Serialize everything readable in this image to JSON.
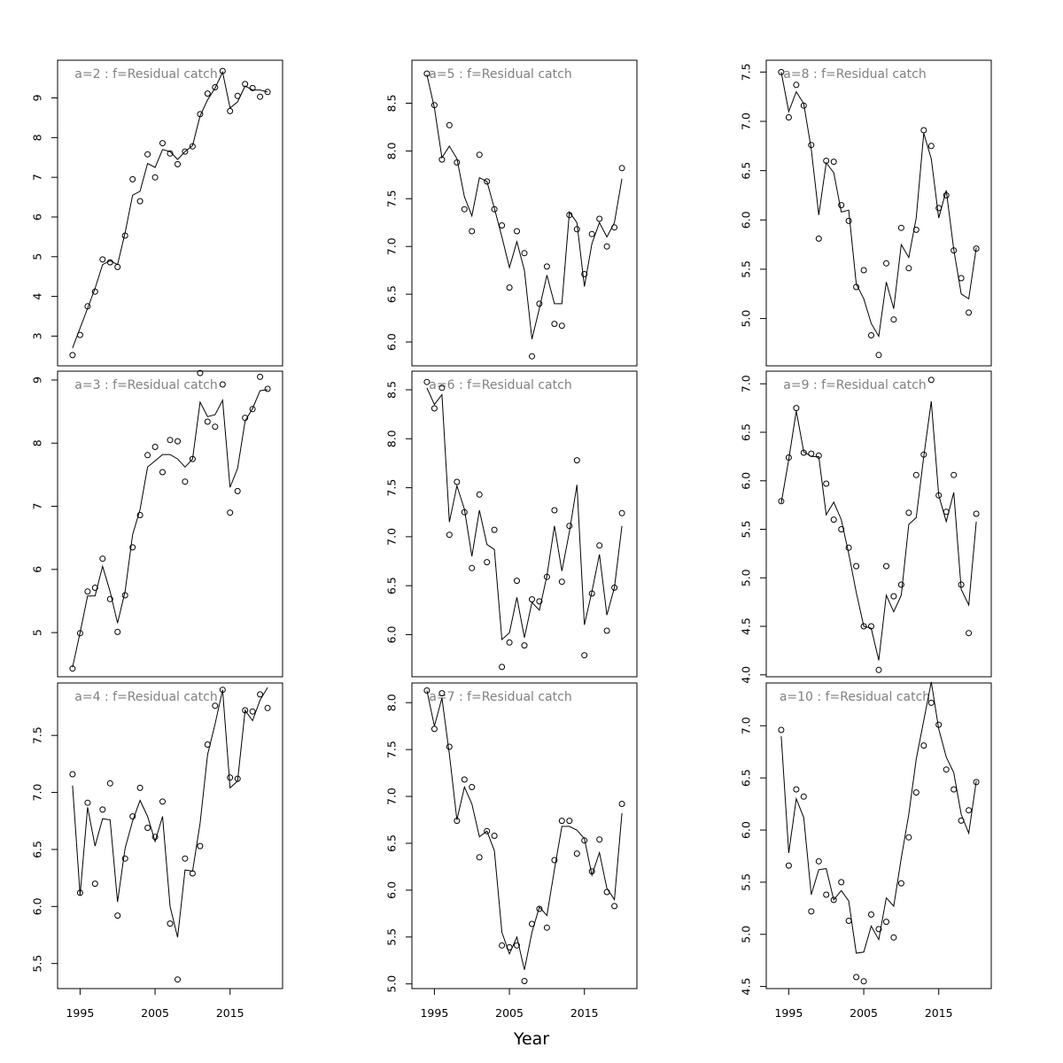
{
  "xlabel": "Year",
  "chart_data": [
    {
      "type": "line",
      "title": "a=2  :  f=Residual catch",
      "xlim": [
        1992,
        2022
      ],
      "ylim": [
        2.25,
        9.95
      ],
      "yticks": [
        3,
        4,
        5,
        6,
        7,
        8,
        9
      ],
      "xticks": [],
      "x": [
        1994,
        1995,
        1996,
        1997,
        1998,
        1999,
        2000,
        2001,
        2002,
        2003,
        2004,
        2005,
        2006,
        2007,
        2008,
        2009,
        2010,
        2011,
        2012,
        2013,
        2014,
        2015,
        2016,
        2017,
        2018,
        2019,
        2020
      ],
      "series": [
        {
          "values": [
            2.52,
            3.03,
            3.75,
            4.12,
            4.93,
            4.86,
            4.74,
            5.53,
            6.95,
            6.4,
            7.58,
            7.0,
            7.86,
            7.6,
            7.33,
            7.65,
            7.78,
            8.59,
            9.11,
            9.27,
            9.68,
            8.67,
            9.05,
            9.35,
            9.25,
            9.03,
            9.15
          ]
        },
        {
          "values": [
            2.7,
            3.2,
            3.7,
            4.2,
            4.8,
            4.9,
            4.8,
            5.6,
            6.55,
            6.65,
            7.35,
            7.25,
            7.7,
            7.65,
            7.45,
            7.65,
            7.8,
            8.55,
            8.95,
            9.25,
            9.65,
            8.75,
            8.9,
            9.3,
            9.2,
            9.2,
            9.15
          ]
        }
      ]
    },
    {
      "type": "line",
      "title": "a=5  :  f=Residual catch",
      "xlim": [
        1992,
        2022
      ],
      "ylim": [
        5.75,
        8.95
      ],
      "yticks": [
        6.0,
        6.5,
        7.0,
        7.5,
        8.0,
        8.5
      ],
      "xticks": [],
      "x": [
        1994,
        1995,
        1996,
        1997,
        1998,
        1999,
        2000,
        2001,
        2002,
        2003,
        2004,
        2005,
        2006,
        2007,
        2008,
        2009,
        2010,
        2011,
        2012,
        2013,
        2014,
        2015,
        2016,
        2017,
        2018,
        2019,
        2020
      ],
      "series": [
        {
          "values": [
            8.81,
            8.48,
            7.91,
            8.27,
            7.88,
            7.39,
            7.16,
            7.96,
            7.68,
            7.39,
            7.22,
            6.57,
            7.16,
            6.93,
            5.85,
            6.4,
            6.79,
            6.19,
            6.17,
            7.33,
            7.18,
            6.71,
            7.13,
            7.29,
            7.0,
            7.2,
            7.82
          ]
        },
        {
          "values": [
            8.8,
            8.45,
            7.93,
            8.05,
            7.92,
            7.52,
            7.32,
            7.72,
            7.68,
            7.4,
            7.1,
            6.78,
            7.05,
            6.75,
            6.03,
            6.35,
            6.7,
            6.4,
            6.4,
            7.36,
            7.25,
            6.58,
            7.03,
            7.25,
            7.1,
            7.25,
            7.71
          ]
        }
      ]
    },
    {
      "type": "line",
      "title": "a=8  :  f=Residual catch",
      "xlim": [
        1992,
        2022
      ],
      "ylim": [
        4.52,
        7.62
      ],
      "yticks": [
        5.0,
        5.5,
        6.0,
        6.5,
        7.0,
        7.5
      ],
      "xticks": [],
      "x": [
        1994,
        1995,
        1996,
        1997,
        1998,
        1999,
        2000,
        2001,
        2002,
        2003,
        2004,
        2005,
        2006,
        2007,
        2008,
        2009,
        2010,
        2011,
        2012,
        2013,
        2014,
        2015,
        2016,
        2017,
        2018,
        2019,
        2020
      ],
      "series": [
        {
          "values": [
            7.5,
            7.04,
            7.37,
            7.16,
            6.76,
            5.81,
            6.6,
            6.59,
            6.15,
            5.99,
            5.32,
            5.49,
            4.83,
            4.63,
            5.56,
            4.99,
            5.92,
            5.51,
            5.9,
            6.91,
            6.75,
            6.12,
            6.25,
            5.69,
            5.41,
            5.06,
            5.71
          ]
        },
        {
          "values": [
            7.5,
            7.1,
            7.3,
            7.18,
            6.72,
            6.05,
            6.58,
            6.48,
            6.08,
            6.1,
            5.35,
            5.2,
            4.95,
            4.82,
            5.37,
            5.1,
            5.75,
            5.62,
            6.02,
            6.88,
            6.62,
            6.02,
            6.3,
            5.7,
            5.25,
            5.2,
            5.72
          ]
        }
      ]
    },
    {
      "type": "line",
      "title": "a=3  :  f=Residual catch",
      "xlim": [
        1992,
        2022
      ],
      "ylim": [
        4.3,
        9.14
      ],
      "yticks": [
        5,
        6,
        7,
        8,
        9
      ],
      "xticks": [],
      "x": [
        1994,
        1995,
        1996,
        1997,
        1998,
        1999,
        2000,
        2001,
        2002,
        2003,
        2004,
        2005,
        2006,
        2007,
        2008,
        2009,
        2010,
        2011,
        2012,
        2013,
        2014,
        2015,
        2016,
        2017,
        2018,
        2019,
        2020
      ],
      "series": [
        {
          "values": [
            4.43,
            4.99,
            5.65,
            5.71,
            6.17,
            5.53,
            5.01,
            5.59,
            6.35,
            6.86,
            7.81,
            7.94,
            7.54,
            8.05,
            8.03,
            7.39,
            7.75,
            9.11,
            8.34,
            8.26,
            8.93,
            6.9,
            7.24,
            8.4,
            8.54,
            9.05,
            8.86
          ]
        },
        {
          "values": [
            4.45,
            5.0,
            5.58,
            5.58,
            6.05,
            5.65,
            5.15,
            5.65,
            6.55,
            6.95,
            7.62,
            7.72,
            7.82,
            7.82,
            7.75,
            7.62,
            7.75,
            8.65,
            8.42,
            8.45,
            8.68,
            7.3,
            7.6,
            8.35,
            8.55,
            8.83,
            8.85
          ]
        }
      ]
    },
    {
      "type": "line",
      "title": "a=6  :  f=Residual catch",
      "xlim": [
        1992,
        2022
      ],
      "ylim": [
        5.57,
        8.69
      ],
      "yticks": [
        6.0,
        6.5,
        7.0,
        7.5,
        8.0,
        8.5
      ],
      "xticks": [],
      "x": [
        1994,
        1995,
        1996,
        1997,
        1998,
        1999,
        2000,
        2001,
        2002,
        2003,
        2004,
        2005,
        2006,
        2007,
        2008,
        2009,
        2010,
        2011,
        2012,
        2013,
        2014,
        2015,
        2016,
        2017,
        2018,
        2019,
        2020
      ],
      "series": [
        {
          "values": [
            8.58,
            8.31,
            8.52,
            7.02,
            7.56,
            7.25,
            6.68,
            7.43,
            6.74,
            7.07,
            5.67,
            5.92,
            6.55,
            5.89,
            6.36,
            6.34,
            6.59,
            7.27,
            6.54,
            7.11,
            7.78,
            5.79,
            6.42,
            6.91,
            6.04,
            6.48,
            7.24
          ]
        },
        {
          "values": [
            8.52,
            8.35,
            8.45,
            7.15,
            7.52,
            7.28,
            6.8,
            7.27,
            6.92,
            6.87,
            5.95,
            6.02,
            6.38,
            5.97,
            6.33,
            6.25,
            6.6,
            7.11,
            6.65,
            7.05,
            7.53,
            6.1,
            6.44,
            6.82,
            6.2,
            6.48,
            7.11
          ]
        }
      ]
    },
    {
      "type": "line",
      "title": "a=9  :  f=Residual catch",
      "xlim": [
        1992,
        2022
      ],
      "ylim": [
        3.98,
        7.13
      ],
      "yticks": [
        4.0,
        4.5,
        5.0,
        5.5,
        6.0,
        6.5,
        7.0
      ],
      "xticks": [],
      "x": [
        1994,
        1995,
        1996,
        1997,
        1998,
        1999,
        2000,
        2001,
        2002,
        2003,
        2004,
        2005,
        2006,
        2007,
        2008,
        2009,
        2010,
        2011,
        2012,
        2013,
        2014,
        2015,
        2016,
        2017,
        2018,
        2019,
        2020
      ],
      "series": [
        {
          "values": [
            5.79,
            6.24,
            6.75,
            6.29,
            6.28,
            6.26,
            5.97,
            5.6,
            5.5,
            5.31,
            5.12,
            4.5,
            4.5,
            4.05,
            5.12,
            4.81,
            4.93,
            5.67,
            6.06,
            6.27,
            7.04,
            5.85,
            5.68,
            6.06,
            4.93,
            4.43,
            5.66
          ]
        },
        {
          "values": [
            5.77,
            6.22,
            6.72,
            6.3,
            6.25,
            6.25,
            5.65,
            5.78,
            5.6,
            5.25,
            4.85,
            4.5,
            4.48,
            4.15,
            4.82,
            4.65,
            4.82,
            5.55,
            5.62,
            6.25,
            6.82,
            5.85,
            5.58,
            5.88,
            4.88,
            4.72,
            5.58
          ]
        }
      ]
    },
    {
      "type": "line",
      "title": "a=4  :  f=Residual catch",
      "xlim": [
        1992,
        2022
      ],
      "ylim": [
        5.28,
        7.96
      ],
      "yticks": [
        5.5,
        6.0,
        6.5,
        7.0,
        7.5
      ],
      "xticks": [
        1995,
        2005,
        2015
      ],
      "x": [
        1994,
        1995,
        1996,
        1997,
        1998,
        1999,
        2000,
        2001,
        2002,
        2003,
        2004,
        2005,
        2006,
        2007,
        2008,
        2009,
        2010,
        2011,
        2012,
        2013,
        2014,
        2015,
        2016,
        2017,
        2018,
        2019,
        2020
      ],
      "series": [
        {
          "values": [
            7.16,
            6.12,
            6.91,
            6.2,
            6.85,
            7.08,
            5.92,
            6.42,
            6.79,
            7.04,
            6.69,
            6.61,
            6.92,
            5.85,
            5.36,
            6.42,
            6.29,
            6.53,
            7.42,
            7.76,
            7.9,
            7.13,
            7.12,
            7.72,
            7.71,
            7.86,
            7.74
          ]
        },
        {
          "values": [
            7.06,
            6.1,
            6.87,
            6.53,
            6.77,
            6.76,
            6.04,
            6.51,
            6.75,
            6.93,
            6.79,
            6.57,
            6.79,
            6.0,
            5.73,
            6.32,
            6.31,
            6.73,
            7.33,
            7.6,
            7.9,
            7.04,
            7.1,
            7.72,
            7.63,
            7.81,
            7.92
          ]
        }
      ]
    },
    {
      "type": "line",
      "title": "a=7  :  f=Residual catch",
      "xlim": [
        1992,
        2022
      ],
      "ylim": [
        4.95,
        8.21
      ],
      "yticks": [
        5.0,
        5.5,
        6.0,
        6.5,
        7.0,
        7.5,
        8.0
      ],
      "xticks": [
        1995,
        2005,
        2015
      ],
      "x": [
        1994,
        1995,
        1996,
        1997,
        1998,
        1999,
        2000,
        2001,
        2002,
        2003,
        2004,
        2005,
        2006,
        2007,
        2008,
        2009,
        2010,
        2011,
        2012,
        2013,
        2014,
        2015,
        2016,
        2017,
        2018,
        2019,
        2020
      ],
      "series": [
        {
          "values": [
            8.13,
            7.72,
            8.1,
            7.53,
            6.74,
            7.18,
            7.1,
            6.35,
            6.63,
            6.58,
            5.41,
            5.39,
            5.41,
            5.03,
            5.64,
            5.8,
            5.6,
            6.32,
            6.74,
            6.74,
            6.39,
            6.53,
            6.2,
            6.54,
            5.98,
            5.83,
            6.92
          ]
        },
        {
          "values": [
            8.13,
            7.75,
            8.05,
            7.45,
            6.75,
            7.1,
            6.92,
            6.57,
            6.63,
            6.42,
            5.55,
            5.32,
            5.5,
            5.15,
            5.55,
            5.82,
            5.73,
            6.22,
            6.68,
            6.68,
            6.64,
            6.55,
            6.16,
            6.4,
            6.02,
            5.9,
            6.82
          ]
        }
      ]
    },
    {
      "type": "line",
      "title": "a=10  :  f=Residual catch",
      "xlim": [
        1992,
        2022
      ],
      "ylim": [
        4.48,
        7.41
      ],
      "yticks": [
        4.5,
        5.0,
        5.5,
        6.0,
        6.5,
        7.0
      ],
      "xticks": [
        1995,
        2005,
        2015
      ],
      "x": [
        1994,
        1995,
        1996,
        1997,
        1998,
        1999,
        2000,
        2001,
        2002,
        2003,
        2004,
        2005,
        2006,
        2007,
        2008,
        2009,
        2010,
        2011,
        2012,
        2013,
        2014,
        2015,
        2016,
        2017,
        2018,
        2019,
        2020
      ],
      "series": [
        {
          "values": [
            6.96,
            5.66,
            6.39,
            6.32,
            5.22,
            5.7,
            5.38,
            5.33,
            5.5,
            5.13,
            4.59,
            4.55,
            5.19,
            5.05,
            5.12,
            4.97,
            5.49,
            5.93,
            6.36,
            6.81,
            7.22,
            7.01,
            6.58,
            6.39,
            6.09,
            6.19,
            6.46
          ]
        },
        {
          "values": [
            6.9,
            5.78,
            6.3,
            6.12,
            5.38,
            5.62,
            5.63,
            5.33,
            5.42,
            5.32,
            4.82,
            4.83,
            5.08,
            4.95,
            5.35,
            5.27,
            5.73,
            6.15,
            6.68,
            7.05,
            7.42,
            6.97,
            6.7,
            6.55,
            6.15,
            5.97,
            6.47
          ]
        }
      ]
    }
  ]
}
